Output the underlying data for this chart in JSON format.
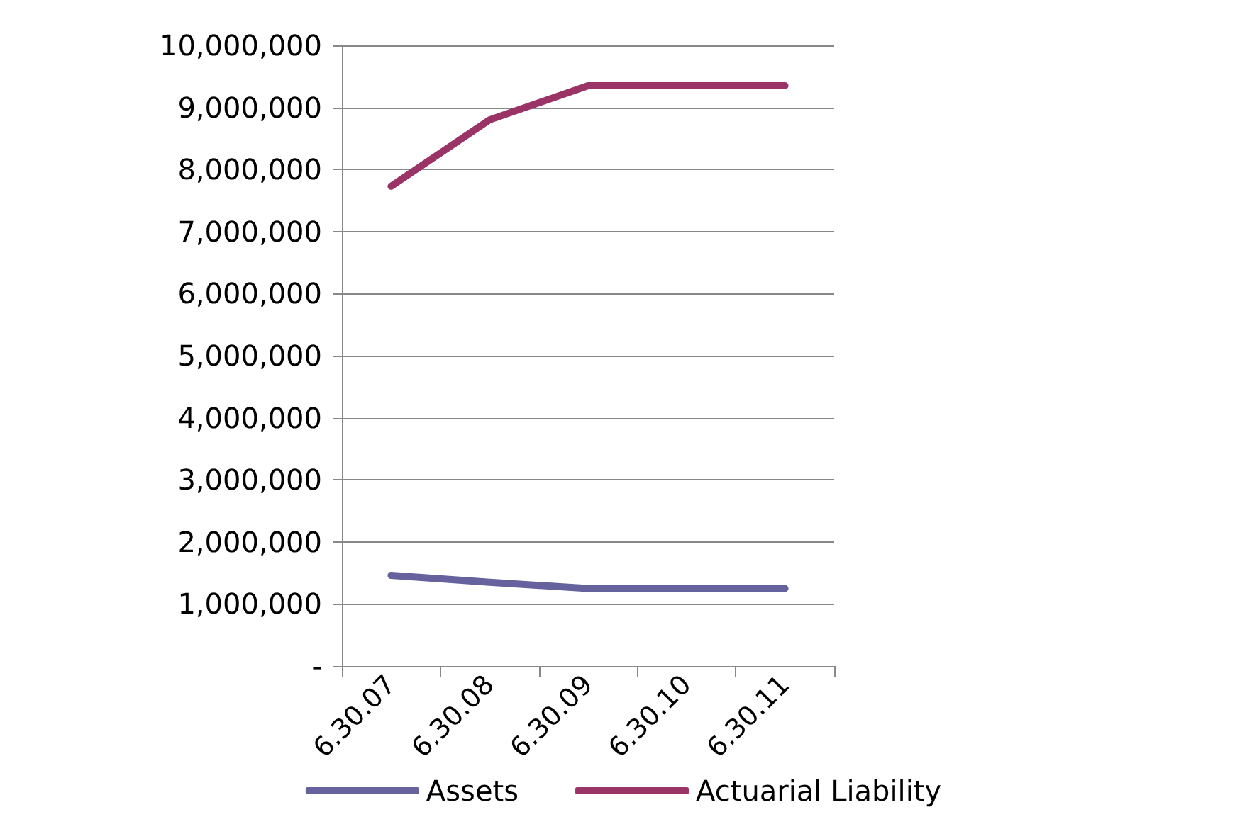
{
  "chart_data": {
    "type": "line",
    "categories": [
      "6.30.07",
      "6.30.08",
      "6.30.09",
      "6.30.10",
      "6.30.11"
    ],
    "series": [
      {
        "name": "Assets",
        "color": "#65629e",
        "values": [
          1460000,
          1350000,
          1250000,
          1250000,
          1250000
        ]
      },
      {
        "name": "Actuarial Liability",
        "color": "#9b3466",
        "values": [
          7730000,
          8800000,
          9350000,
          9350000,
          9350000
        ]
      }
    ],
    "ylim": [
      0,
      10000000
    ],
    "yticks": [
      {
        "value": 0,
        "label": "-"
      },
      {
        "value": 1000000,
        "label": "1,000,000"
      },
      {
        "value": 2000000,
        "label": "2,000,000"
      },
      {
        "value": 3000000,
        "label": "3,000,000"
      },
      {
        "value": 4000000,
        "label": "4,000,000"
      },
      {
        "value": 5000000,
        "label": "5,000,000"
      },
      {
        "value": 6000000,
        "label": "6,000,000"
      },
      {
        "value": 7000000,
        "label": "7,000,000"
      },
      {
        "value": 8000000,
        "label": "8,000,000"
      },
      {
        "value": 9000000,
        "label": "9,000,000"
      },
      {
        "value": 10000000,
        "label": "10,000,000"
      }
    ],
    "grid": "y",
    "legend": "bottom",
    "marker": "none",
    "line_style": "solid"
  }
}
